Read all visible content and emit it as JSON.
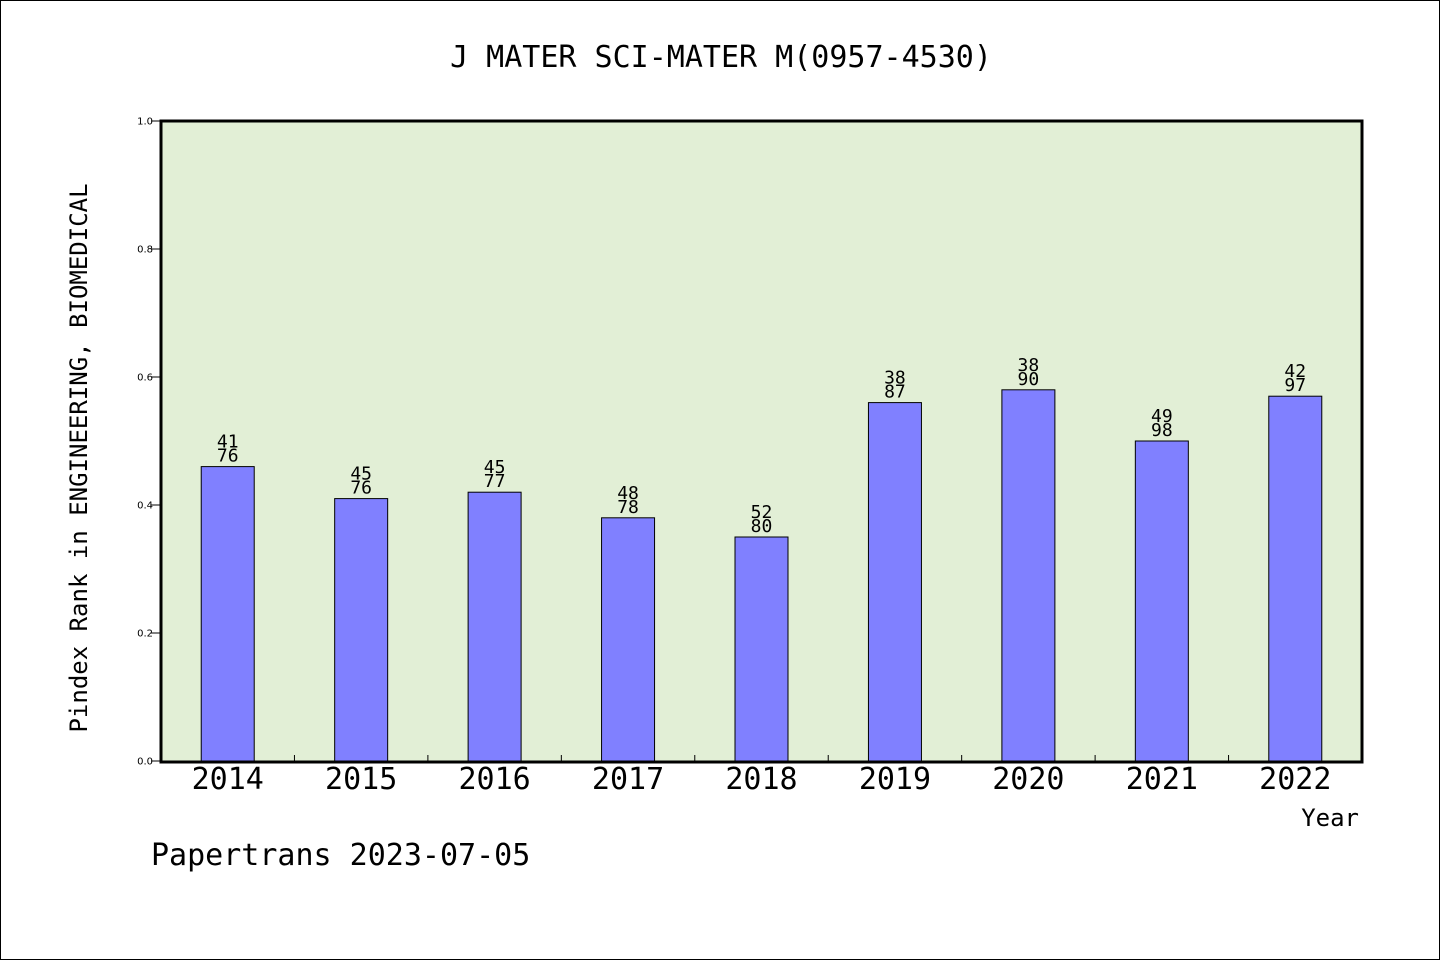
{
  "chart_data": {
    "type": "bar",
    "title": "J MATER SCI-MATER M(0957-4530)",
    "xlabel": "Year",
    "ylabel": "Pindex Rank in ENGINEERING, BIOMEDICAL",
    "categories": [
      "2014",
      "2015",
      "2016",
      "2017",
      "2018",
      "2019",
      "2020",
      "2021",
      "2022"
    ],
    "values": [
      0.46,
      0.41,
      0.42,
      0.38,
      0.35,
      0.56,
      0.58,
      0.5,
      0.57
    ],
    "rank_labels": [
      "41",
      "45",
      "45",
      "48",
      "52",
      "38",
      "38",
      "49",
      "42"
    ],
    "total_labels": [
      "76",
      "76",
      "77",
      "78",
      "80",
      "87",
      "90",
      "98",
      "97"
    ],
    "ylim": [
      0,
      1.0
    ],
    "yticks": [
      "0.0",
      "0.2",
      "0.4",
      "0.6",
      "0.8",
      "1.0"
    ],
    "grid": false,
    "legend": "none",
    "colors": {
      "bar_fill": "#8080ff",
      "plot_background": "#e2efd6",
      "axis": "#000000"
    }
  },
  "footer": {
    "note": "Papertrans 2023-07-05"
  }
}
